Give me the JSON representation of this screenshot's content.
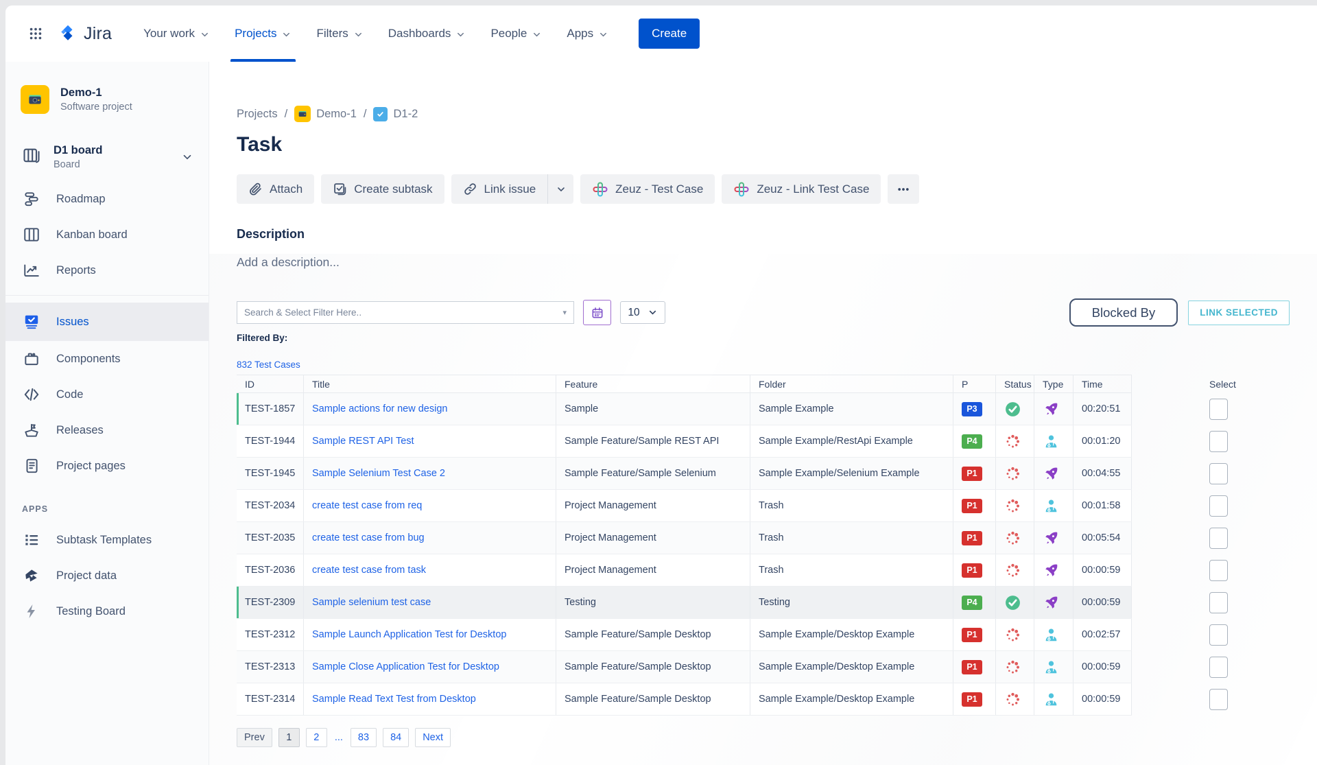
{
  "topnav": {
    "brand": "Jira",
    "items": [
      {
        "label": "Your work",
        "active": false
      },
      {
        "label": "Projects",
        "active": true
      },
      {
        "label": "Filters",
        "active": false
      },
      {
        "label": "Dashboards",
        "active": false
      },
      {
        "label": "People",
        "active": false
      },
      {
        "label": "Apps",
        "active": false
      }
    ],
    "create_label": "Create"
  },
  "sidebar": {
    "project": {
      "name": "Demo-1",
      "type": "Software project"
    },
    "board": {
      "name": "D1 board",
      "type": "Board"
    },
    "items": [
      {
        "label": "Roadmap"
      },
      {
        "label": "Kanban board"
      },
      {
        "label": "Reports"
      },
      {
        "label": "Issues",
        "active": true
      },
      {
        "label": "Components"
      },
      {
        "label": "Code"
      },
      {
        "label": "Releases"
      },
      {
        "label": "Project pages"
      }
    ],
    "apps_header": "APPS",
    "apps_items": [
      {
        "label": "Subtask Templates"
      },
      {
        "label": "Project data"
      },
      {
        "label": "Testing Board"
      }
    ]
  },
  "main": {
    "breadcrumb": {
      "projects": "Projects",
      "project": "Demo-1",
      "issue": "D1-2",
      "sep": "/"
    },
    "title": "Task",
    "actions": {
      "attach": "Attach",
      "create_subtask": "Create subtask",
      "link_issue": "Link issue",
      "zeuz_test_case": "Zeuz - Test Case",
      "zeuz_link_test_case": "Zeuz - Link Test Case"
    },
    "description": {
      "heading": "Description",
      "placeholder": "Add a description..."
    }
  },
  "panel": {
    "search_placeholder": "Search & Select Filter Here..",
    "page_size": "10",
    "blocked_by_label": "Blocked By",
    "link_selected_label": "LINK SELECTED",
    "filtered_by_label": "Filtered By:",
    "count_link": "832 Test Cases"
  },
  "table": {
    "columns": [
      "ID",
      "Title",
      "Feature",
      "Folder",
      "P",
      "Status",
      "Type",
      "Time",
      "Select"
    ],
    "rows": [
      {
        "id": "TEST-1857",
        "title": "Sample actions for new design",
        "feature": "Sample",
        "folder": "Sample Example",
        "priority": "P3",
        "priority_color": "#1A56DB",
        "status": "passed",
        "type": "rocket",
        "time": "00:20:51",
        "marked": true,
        "selected": false
      },
      {
        "id": "TEST-1944",
        "title": "Sample REST API Test",
        "feature": "Sample Feature/Sample REST API",
        "folder": "Sample Example/RestApi Example",
        "priority": "P4",
        "priority_color": "#4CAE4F",
        "status": "running",
        "type": "doctor",
        "time": "00:01:20",
        "marked": false,
        "selected": false
      },
      {
        "id": "TEST-1945",
        "title": "Sample Selenium Test Case 2",
        "feature": "Sample Feature/Sample Selenium",
        "folder": "Sample Example/Selenium Example",
        "priority": "P1",
        "priority_color": "#D6312E",
        "status": "running",
        "type": "rocket",
        "time": "00:04:55",
        "marked": false,
        "selected": false
      },
      {
        "id": "TEST-2034",
        "title": "create test case from req",
        "feature": "Project Management",
        "folder": "Trash",
        "priority": "P1",
        "priority_color": "#D6312E",
        "status": "running",
        "type": "doctor",
        "time": "00:01:58",
        "marked": false,
        "selected": false
      },
      {
        "id": "TEST-2035",
        "title": "create test case from bug",
        "feature": "Project Management",
        "folder": "Trash",
        "priority": "P1",
        "priority_color": "#D6312E",
        "status": "running",
        "type": "rocket",
        "time": "00:05:54",
        "marked": false,
        "selected": false
      },
      {
        "id": "TEST-2036",
        "title": "create test case from task",
        "feature": "Project Management",
        "folder": "Trash",
        "priority": "P1",
        "priority_color": "#D6312E",
        "status": "running",
        "type": "rocket",
        "time": "00:00:59",
        "marked": false,
        "selected": false
      },
      {
        "id": "TEST-2309",
        "title": "Sample selenium test case",
        "feature": "Testing",
        "folder": "Testing",
        "priority": "P4",
        "priority_color": "#4CAE4F",
        "status": "passed",
        "type": "rocket",
        "time": "00:00:59",
        "marked": true,
        "selected": true
      },
      {
        "id": "TEST-2312",
        "title": "Sample Launch Application Test for Desktop",
        "feature": "Sample Feature/Sample Desktop",
        "folder": "Sample Example/Desktop Example",
        "priority": "P1",
        "priority_color": "#D6312E",
        "status": "running",
        "type": "doctor",
        "time": "00:02:57",
        "marked": false,
        "selected": false
      },
      {
        "id": "TEST-2313",
        "title": "Sample Close Application Test for Desktop",
        "feature": "Sample Feature/Sample Desktop",
        "folder": "Sample Example/Desktop Example",
        "priority": "P1",
        "priority_color": "#D6312E",
        "status": "running",
        "type": "doctor",
        "time": "00:00:59",
        "marked": false,
        "selected": false
      },
      {
        "id": "TEST-2314",
        "title": "Sample Read Text Test from Desktop",
        "feature": "Sample Feature/Sample Desktop",
        "folder": "Sample Example/Desktop Example",
        "priority": "P1",
        "priority_color": "#D6312E",
        "status": "running",
        "type": "doctor",
        "time": "00:00:59",
        "marked": false,
        "selected": false
      }
    ]
  },
  "pagination": {
    "items": [
      {
        "label": "Prev",
        "state": "disabled"
      },
      {
        "label": "1",
        "state": "current"
      },
      {
        "label": "2",
        "state": "link"
      },
      {
        "label": "...",
        "state": "dots"
      },
      {
        "label": "83",
        "state": "link"
      },
      {
        "label": "84",
        "state": "link"
      },
      {
        "label": "Next",
        "state": "link"
      }
    ]
  },
  "colors": {
    "accent": "#0052CC",
    "table_link": "#1F63E6",
    "marker_green": "#4DBD8E",
    "status_passed": "#4DBD8E",
    "status_running": "#E05B5B",
    "type_rocket": "#8B3FC6",
    "type_doctor": "#4FC3DD",
    "project_avatar": "#FFC400",
    "link_selected": "#45B6CE"
  }
}
